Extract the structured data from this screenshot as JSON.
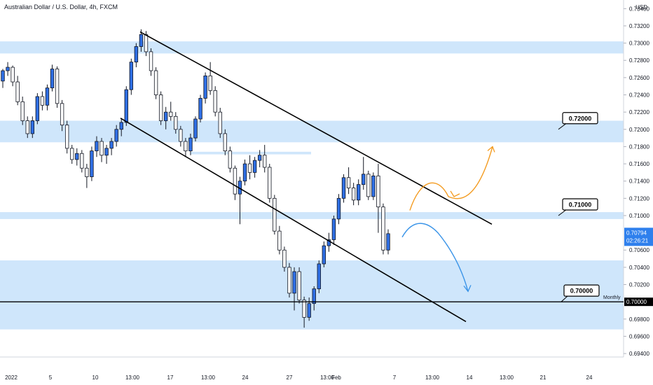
{
  "header": {
    "title": "Australian Dollar / U.S. Dollar, 4h, FXCM",
    "currency": "USD"
  },
  "colors": {
    "candle_up": "#2f6fe4",
    "candle_down": "#ffffff",
    "zone_fill": "#cfe6fb",
    "orange_path": "#f39b20",
    "blue_path": "#3a94e8",
    "price_badge": "#2f80ed"
  },
  "chart_data": {
    "type": "candlestick",
    "symbol": "AUDUSD",
    "timeframe": "4h",
    "ylim": [
      0.6936,
      0.735
    ],
    "y_ticks": [
      "0.73400",
      "0.73200",
      "0.73000",
      "0.72800",
      "0.72600",
      "0.72400",
      "0.72200",
      "0.72000",
      "0.71800",
      "0.71600",
      "0.71400",
      "0.71200",
      "0.71000",
      "0.70600",
      "0.70400",
      "0.70200",
      "0.69800",
      "0.69600",
      "0.69400"
    ],
    "x_labels": [
      "2022",
      "5",
      "10",
      "13:00",
      "17",
      "13:00",
      "24",
      "27",
      "13:00",
      "Feb",
      "7",
      "13:00",
      "14",
      "13:00",
      "21",
      "24"
    ],
    "zones": [
      {
        "low": 0.7288,
        "high": 0.7302
      },
      {
        "low": 0.7185,
        "high": 0.721
      },
      {
        "low": 0.7096,
        "high": 0.7104
      },
      {
        "low": 0.6968,
        "high": 0.7048
      },
      {
        "low": 0.7171,
        "high": 0.7174
      }
    ],
    "levels": [
      {
        "label": "0.72000",
        "value": 0.72
      },
      {
        "label": "0.71000",
        "value": 0.71
      },
      {
        "label": "0.70000",
        "value": 0.7
      }
    ],
    "horizontal_line": {
      "value": 0.7,
      "label": "Monthly",
      "price_label": "0.70000"
    },
    "channel": {
      "upper": [
        {
          "x": 0.7313
        },
        {
          "x": 0.709
        }
      ],
      "lower": [
        {
          "x": 0.7213
        },
        {
          "x": 0.6977
        }
      ]
    },
    "last_price": "0.70794",
    "countdown": "02:26:21",
    "candles": [
      [
        0.7256,
        0.727,
        0.7248,
        0.7268
      ],
      [
        0.7268,
        0.7278,
        0.7262,
        0.7272
      ],
      [
        0.7272,
        0.7274,
        0.725,
        0.7255
      ],
      [
        0.7255,
        0.7262,
        0.7228,
        0.7232
      ],
      [
        0.7232,
        0.7238,
        0.7205,
        0.721
      ],
      [
        0.721,
        0.7215,
        0.719,
        0.7195
      ],
      [
        0.7195,
        0.7215,
        0.719,
        0.721
      ],
      [
        0.721,
        0.7242,
        0.7206,
        0.7238
      ],
      [
        0.7238,
        0.7244,
        0.7222,
        0.7228
      ],
      [
        0.7228,
        0.7252,
        0.7222,
        0.7248
      ],
      [
        0.7248,
        0.7275,
        0.7244,
        0.727
      ],
      [
        0.727,
        0.7273,
        0.7225,
        0.723
      ],
      [
        0.723,
        0.7234,
        0.7198,
        0.7205
      ],
      [
        0.7205,
        0.721,
        0.7172,
        0.7178
      ],
      [
        0.7178,
        0.7182,
        0.716,
        0.7165
      ],
      [
        0.7165,
        0.7178,
        0.7158,
        0.7172
      ],
      [
        0.7172,
        0.7176,
        0.715,
        0.7155
      ],
      [
        0.7155,
        0.716,
        0.7132,
        0.7145
      ],
      [
        0.7145,
        0.718,
        0.714,
        0.7175
      ],
      [
        0.7175,
        0.7192,
        0.7168,
        0.7186
      ],
      [
        0.7186,
        0.719,
        0.7162,
        0.717
      ],
      [
        0.717,
        0.7182,
        0.716,
        0.7178
      ],
      [
        0.7178,
        0.719,
        0.717,
        0.7186
      ],
      [
        0.7186,
        0.7205,
        0.718,
        0.72
      ],
      [
        0.72,
        0.7212,
        0.7192,
        0.7208
      ],
      [
        0.7208,
        0.725,
        0.7204,
        0.7246
      ],
      [
        0.7246,
        0.7282,
        0.724,
        0.7278
      ],
      [
        0.7278,
        0.73,
        0.7272,
        0.7296
      ],
      [
        0.7296,
        0.7316,
        0.729,
        0.731
      ],
      [
        0.731,
        0.7314,
        0.7285,
        0.729
      ],
      [
        0.729,
        0.7294,
        0.7262,
        0.7268
      ],
      [
        0.7268,
        0.7272,
        0.7235,
        0.724
      ],
      [
        0.724,
        0.7244,
        0.7205,
        0.721
      ],
      [
        0.721,
        0.7226,
        0.72,
        0.722
      ],
      [
        0.722,
        0.7232,
        0.721,
        0.7215
      ],
      [
        0.7215,
        0.722,
        0.7195,
        0.72
      ],
      [
        0.72,
        0.7204,
        0.718,
        0.7186
      ],
      [
        0.7186,
        0.719,
        0.7168,
        0.7175
      ],
      [
        0.7175,
        0.7195,
        0.717,
        0.719
      ],
      [
        0.719,
        0.7215,
        0.7186,
        0.7212
      ],
      [
        0.7212,
        0.724,
        0.7208,
        0.7236
      ],
      [
        0.7236,
        0.7266,
        0.723,
        0.7262
      ],
      [
        0.7262,
        0.7278,
        0.724,
        0.7245
      ],
      [
        0.7245,
        0.725,
        0.7215,
        0.722
      ],
      [
        0.722,
        0.7225,
        0.719,
        0.7195
      ],
      [
        0.7195,
        0.72,
        0.717,
        0.7175
      ],
      [
        0.7175,
        0.718,
        0.715,
        0.7155
      ],
      [
        0.7155,
        0.7158,
        0.7118,
        0.7125
      ],
      [
        0.7125,
        0.7145,
        0.709,
        0.714
      ],
      [
        0.714,
        0.7165,
        0.7135,
        0.716
      ],
      [
        0.716,
        0.717,
        0.7142,
        0.715
      ],
      [
        0.715,
        0.7168,
        0.7144,
        0.7164
      ],
      [
        0.7164,
        0.7176,
        0.7156,
        0.717
      ],
      [
        0.717,
        0.7182,
        0.715,
        0.7156
      ],
      [
        0.7156,
        0.716,
        0.7115,
        0.712
      ],
      [
        0.712,
        0.7124,
        0.7078,
        0.7082
      ],
      [
        0.7082,
        0.7088,
        0.7055,
        0.706
      ],
      [
        0.706,
        0.7064,
        0.7035,
        0.704
      ],
      [
        0.704,
        0.7045,
        0.7005,
        0.701
      ],
      [
        0.701,
        0.704,
        0.699,
        0.7035
      ],
      [
        0.7035,
        0.704,
        0.6998,
        0.7002
      ],
      [
        0.7002,
        0.7006,
        0.697,
        0.6982
      ],
      [
        0.6982,
        0.7005,
        0.6978,
        0.6998
      ],
      [
        0.6998,
        0.7018,
        0.699,
        0.7015
      ],
      [
        0.7015,
        0.7048,
        0.701,
        0.7044
      ],
      [
        0.7044,
        0.707,
        0.704,
        0.7065
      ],
      [
        0.7065,
        0.708,
        0.7058,
        0.7072
      ],
      [
        0.7072,
        0.71,
        0.7066,
        0.7096
      ],
      [
        0.7096,
        0.7125,
        0.709,
        0.712
      ],
      [
        0.712,
        0.7148,
        0.7115,
        0.7144
      ],
      [
        0.7144,
        0.7156,
        0.7125,
        0.7132
      ],
      [
        0.7132,
        0.7138,
        0.7112,
        0.7118
      ],
      [
        0.7118,
        0.7142,
        0.7112,
        0.7136
      ],
      [
        0.7136,
        0.7168,
        0.713,
        0.7148
      ],
      [
        0.7148,
        0.7152,
        0.7118,
        0.7122
      ],
      [
        0.7122,
        0.715,
        0.7118,
        0.7146
      ],
      [
        0.7146,
        0.716,
        0.708,
        0.711
      ],
      [
        0.711,
        0.7114,
        0.7055,
        0.706
      ],
      [
        0.706,
        0.7084,
        0.7055,
        0.7079
      ]
    ]
  },
  "annotations": {
    "zone_labels": [
      "0.72000",
      "0.71000",
      "0.70000"
    ],
    "monthly": "Monthly"
  }
}
